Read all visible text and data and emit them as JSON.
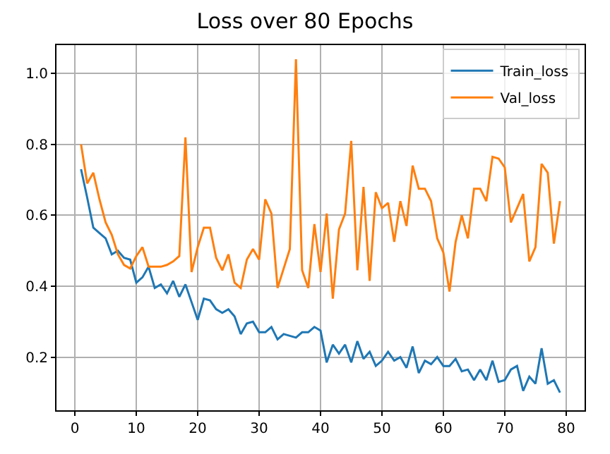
{
  "chart_data": {
    "type": "line",
    "title": "Loss over 80 Epochs",
    "x": [
      1,
      2,
      3,
      4,
      5,
      6,
      7,
      8,
      9,
      10,
      11,
      12,
      13,
      14,
      15,
      16,
      17,
      18,
      19,
      20,
      21,
      22,
      23,
      24,
      25,
      26,
      27,
      28,
      29,
      30,
      31,
      32,
      33,
      34,
      35,
      36,
      37,
      38,
      39,
      40,
      41,
      42,
      43,
      44,
      45,
      46,
      47,
      48,
      49,
      50,
      51,
      52,
      53,
      54,
      55,
      56,
      57,
      58,
      59,
      60,
      61,
      62,
      63,
      64,
      65,
      66,
      67,
      68,
      69,
      70,
      71,
      72,
      73,
      74,
      75,
      76,
      77,
      78,
      79
    ],
    "series": [
      {
        "name": "Train_loss",
        "color": "#1f77b4",
        "values": [
          0.73,
          0.65,
          0.565,
          0.55,
          0.535,
          0.49,
          0.5,
          0.48,
          0.475,
          0.41,
          0.425,
          0.455,
          0.395,
          0.405,
          0.38,
          0.415,
          0.37,
          0.405,
          0.355,
          0.305,
          0.365,
          0.36,
          0.335,
          0.325,
          0.335,
          0.315,
          0.265,
          0.295,
          0.3,
          0.27,
          0.27,
          0.285,
          0.25,
          0.265,
          0.26,
          0.255,
          0.27,
          0.27,
          0.285,
          0.275,
          0.185,
          0.235,
          0.21,
          0.235,
          0.185,
          0.245,
          0.195,
          0.215,
          0.175,
          0.19,
          0.215,
          0.19,
          0.2,
          0.17,
          0.23,
          0.155,
          0.19,
          0.18,
          0.2,
          0.175,
          0.175,
          0.195,
          0.16,
          0.165,
          0.135,
          0.165,
          0.135,
          0.19,
          0.13,
          0.135,
          0.165,
          0.175,
          0.105,
          0.145,
          0.125,
          0.225,
          0.125,
          0.135,
          0.1
        ]
      },
      {
        "name": "Val_loss",
        "color": "#ff7f0e",
        "values": [
          0.8,
          0.69,
          0.72,
          0.645,
          0.58,
          0.545,
          0.49,
          0.46,
          0.45,
          0.485,
          0.51,
          0.455,
          0.455,
          0.455,
          0.46,
          0.47,
          0.485,
          0.82,
          0.44,
          0.51,
          0.565,
          0.565,
          0.48,
          0.445,
          0.49,
          0.41,
          0.395,
          0.475,
          0.505,
          0.475,
          0.645,
          0.605,
          0.395,
          0.45,
          0.505,
          1.04,
          0.445,
          0.395,
          0.575,
          0.44,
          0.605,
          0.365,
          0.56,
          0.605,
          0.81,
          0.445,
          0.68,
          0.415,
          0.665,
          0.62,
          0.635,
          0.525,
          0.64,
          0.57,
          0.74,
          0.675,
          0.675,
          0.64,
          0.535,
          0.495,
          0.385,
          0.525,
          0.6,
          0.535,
          0.675,
          0.675,
          0.64,
          0.765,
          0.76,
          0.735,
          0.58,
          0.62,
          0.66,
          0.47,
          0.51,
          0.745,
          0.72,
          0.52,
          0.64
        ]
      }
    ],
    "xlim": [
      -3,
      83
    ],
    "xticks": [
      0,
      10,
      20,
      30,
      40,
      50,
      60,
      70,
      80
    ],
    "ylim": [
      0.05,
      1.08
    ],
    "yticks": [
      0.2,
      0.4,
      0.6,
      0.8,
      {
        "value": 1,
        "label": "1.0"
      }
    ],
    "grid": true,
    "legend": "top right",
    "marker": "none",
    "line_style": "solid"
  }
}
